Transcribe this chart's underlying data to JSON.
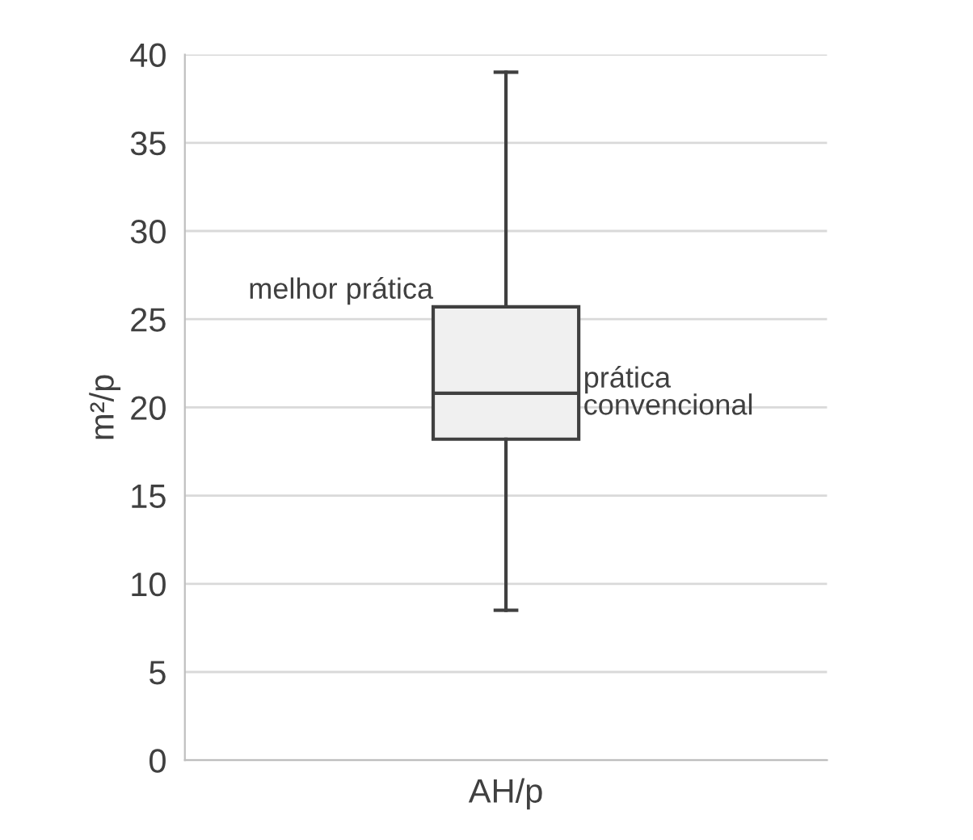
{
  "chart_data": {
    "type": "box",
    "ylabel": "m²/p",
    "categories": [
      "AH/p"
    ],
    "boxes": [
      {
        "low": 8.5,
        "q1": 18.2,
        "median": 20.8,
        "q3": 25.7,
        "high": 39
      }
    ],
    "color": "#f0f0f0",
    "ylim": [
      0,
      40
    ],
    "yticks": [
      0,
      5,
      10,
      15,
      20,
      25,
      30,
      35,
      40
    ],
    "grid": "y",
    "annotations": [
      {
        "text": "melhor prática",
        "x": "AH/p",
        "y": 25.7
      },
      {
        "text": "prática\nconvencional",
        "x": "AH/p",
        "y": 20.8
      }
    ]
  }
}
